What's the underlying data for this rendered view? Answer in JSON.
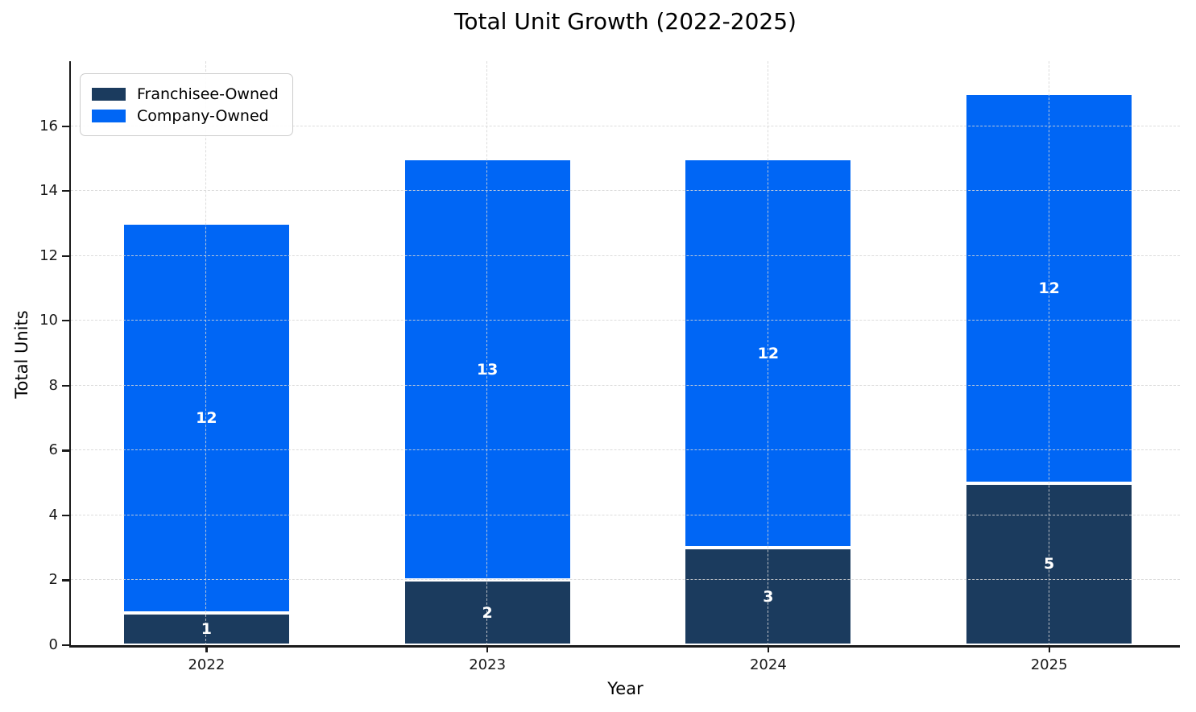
{
  "chart_data": {
    "type": "bar",
    "stacked": true,
    "title": "Total Unit Growth (2022-2025)",
    "xlabel": "Year",
    "ylabel": "Total Units",
    "categories": [
      "2022",
      "2023",
      "2024",
      "2025"
    ],
    "series": [
      {
        "name": "Franchisee-Owned",
        "color": "#1B3B5E",
        "values": [
          1,
          2,
          3,
          5
        ]
      },
      {
        "name": "Company-Owned",
        "color": "#0066F5",
        "values": [
          12,
          13,
          12,
          12
        ]
      }
    ],
    "ylim": [
      0,
      18
    ],
    "yticks": [
      0,
      2,
      4,
      6,
      8,
      10,
      12,
      14,
      16
    ],
    "grid": "dashed, both axes, drawn over bars",
    "legend_position": "upper left",
    "bar_label_color": "#ffffff",
    "bar_edge_color": "#ffffff"
  }
}
